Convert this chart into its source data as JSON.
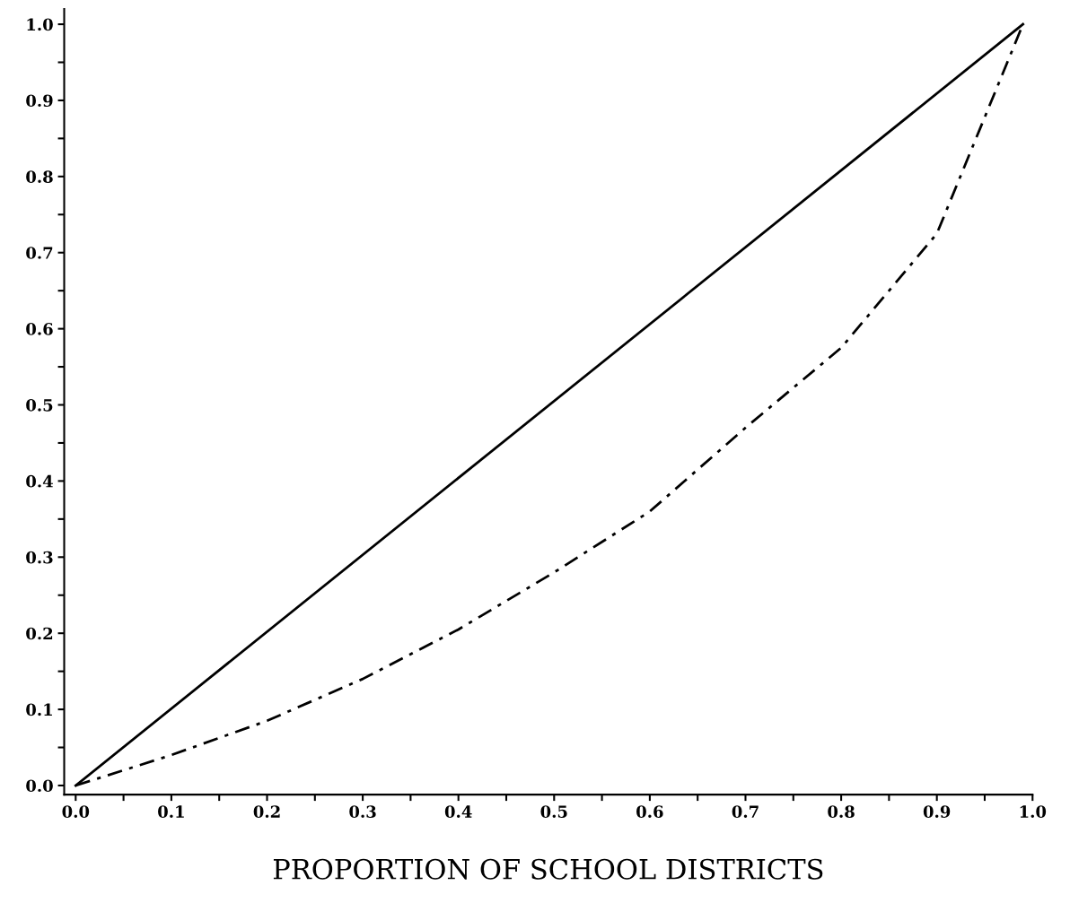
{
  "chart_data": {
    "type": "line",
    "xlabel": "PROPORTION OF SCHOOL DISTRICTS",
    "xlim": [
      -0.012,
      1.0
    ],
    "ylim": [
      -0.012,
      1.02
    ],
    "xticks": [
      {
        "value": 0.0,
        "label": "0.0"
      },
      {
        "value": 0.05,
        "label": null
      },
      {
        "value": 0.1,
        "label": "0.1"
      },
      {
        "value": 0.15,
        "label": null
      },
      {
        "value": 0.2,
        "label": "0.2"
      },
      {
        "value": 0.25,
        "label": null
      },
      {
        "value": 0.3,
        "label": "0.3"
      },
      {
        "value": 0.35,
        "label": null
      },
      {
        "value": 0.4,
        "label": "0.4"
      },
      {
        "value": 0.45,
        "label": null
      },
      {
        "value": 0.5,
        "label": "0.5"
      },
      {
        "value": 0.55,
        "label": null
      },
      {
        "value": 0.6,
        "label": "0.6"
      },
      {
        "value": 0.65,
        "label": null
      },
      {
        "value": 0.7,
        "label": "0.7"
      },
      {
        "value": 0.75,
        "label": null
      },
      {
        "value": 0.8,
        "label": "0.8"
      },
      {
        "value": 0.85,
        "label": null
      },
      {
        "value": 0.9,
        "label": "0.9"
      },
      {
        "value": 0.95,
        "label": null
      },
      {
        "value": 1.0,
        "label": "1.0"
      }
    ],
    "yticks": [
      {
        "value": 0.0,
        "label": "0.0"
      },
      {
        "value": 0.05,
        "label": null
      },
      {
        "value": 0.1,
        "label": "0.1"
      },
      {
        "value": 0.15,
        "label": null
      },
      {
        "value": 0.2,
        "label": "0.2"
      },
      {
        "value": 0.25,
        "label": null
      },
      {
        "value": 0.3,
        "label": "0.3"
      },
      {
        "value": 0.35,
        "label": null
      },
      {
        "value": 0.4,
        "label": "0.4"
      },
      {
        "value": 0.45,
        "label": null
      },
      {
        "value": 0.5,
        "label": "0.5"
      },
      {
        "value": 0.55,
        "label": null
      },
      {
        "value": 0.6,
        "label": "0.6"
      },
      {
        "value": 0.65,
        "label": null
      },
      {
        "value": 0.7,
        "label": "0.7"
      },
      {
        "value": 0.75,
        "label": null
      },
      {
        "value": 0.8,
        "label": "0.8"
      },
      {
        "value": 0.85,
        "label": null
      },
      {
        "value": 0.9,
        "label": "0.9"
      },
      {
        "value": 0.95,
        "label": null
      },
      {
        "value": 1.0,
        "label": "1.0"
      }
    ],
    "grid": false,
    "legend": false,
    "marker": "none",
    "series": [
      {
        "color": "#000000",
        "line_style": "solid",
        "x": [
          0.0,
          0.99
        ],
        "values": [
          0.0,
          1.0
        ]
      },
      {
        "color": "#000000",
        "line_style": "dashdot",
        "x": [
          0.0,
          0.1,
          0.2,
          0.3,
          0.4,
          0.5,
          0.6,
          0.7,
          0.8,
          0.9,
          0.99
        ],
        "values": [
          0.0,
          0.04,
          0.085,
          0.14,
          0.205,
          0.28,
          0.36,
          0.47,
          0.575,
          0.725,
          1.0
        ]
      }
    ]
  }
}
